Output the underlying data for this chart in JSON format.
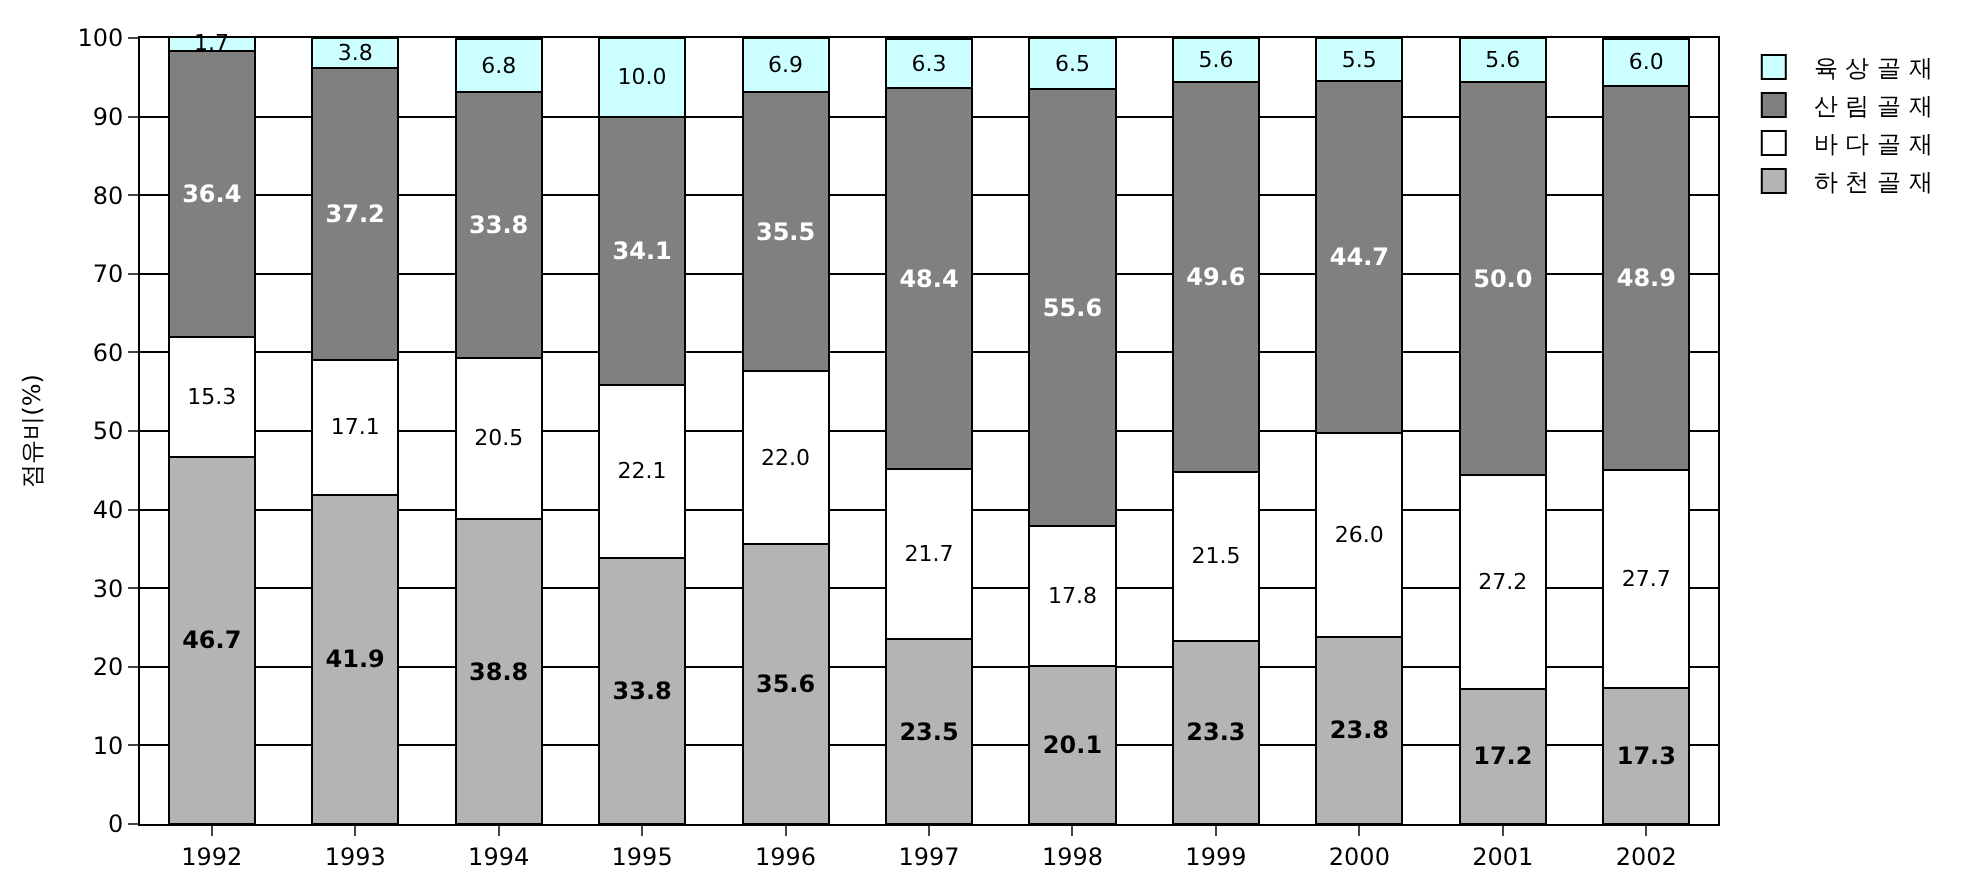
{
  "chart_data": {
    "type": "bar",
    "stacked": true,
    "ylabel": "점유비(%)",
    "categories": [
      "1992",
      "1993",
      "1994",
      "1995",
      "1996",
      "1997",
      "1998",
      "1999",
      "2000",
      "2001",
      "2002"
    ],
    "series": [
      {
        "name": "하 천 골 재",
        "color": "#b4b4b4",
        "values": [
          46.7,
          41.9,
          38.8,
          33.8,
          35.6,
          23.5,
          20.1,
          23.3,
          23.8,
          17.2,
          17.3
        ],
        "value_labels": [
          "46.7",
          "41.9",
          "38.8",
          "33.8",
          "35.6",
          "23.5",
          "20.1",
          "23.3",
          "23.8",
          "17.2",
          "17.3"
        ]
      },
      {
        "name": "바 다 골 재",
        "color": "#ffffff",
        "values": [
          15.3,
          17.1,
          20.5,
          22.1,
          22.0,
          21.7,
          17.8,
          21.5,
          26.0,
          27.2,
          27.7
        ],
        "value_labels": [
          "15.3",
          "17.1",
          "20.5",
          "22.1",
          "22.0",
          "21.7",
          "17.8",
          "21.5",
          "26.0",
          "27.2",
          "27.7"
        ]
      },
      {
        "name": "산 림 골 재",
        "color": "#808080",
        "values": [
          36.4,
          37.2,
          33.8,
          34.1,
          35.5,
          48.4,
          55.6,
          49.6,
          44.7,
          50.0,
          48.9
        ],
        "value_labels": [
          "36.4",
          "37.2",
          "33.8",
          "34.1",
          "35.5",
          "48.4",
          "55.6",
          "49.6",
          "44.7",
          "50.0",
          "48.9"
        ]
      },
      {
        "name": "육 상 골 재",
        "color": "#ccffff",
        "values": [
          1.7,
          3.8,
          6.8,
          10.0,
          6.9,
          6.3,
          6.5,
          5.6,
          5.5,
          5.6,
          6.0
        ],
        "value_labels": [
          "1.7",
          "3.8",
          "6.8",
          "10.0",
          "6.9",
          "6.3",
          "6.5",
          "5.6",
          "5.5",
          "5.6",
          "6.0"
        ]
      }
    ],
    "ylim": [
      0,
      100
    ],
    "yticks": [
      0,
      10,
      20,
      30,
      40,
      50,
      60,
      70,
      80,
      90,
      100
    ],
    "grid": "y",
    "legend": "top right"
  }
}
